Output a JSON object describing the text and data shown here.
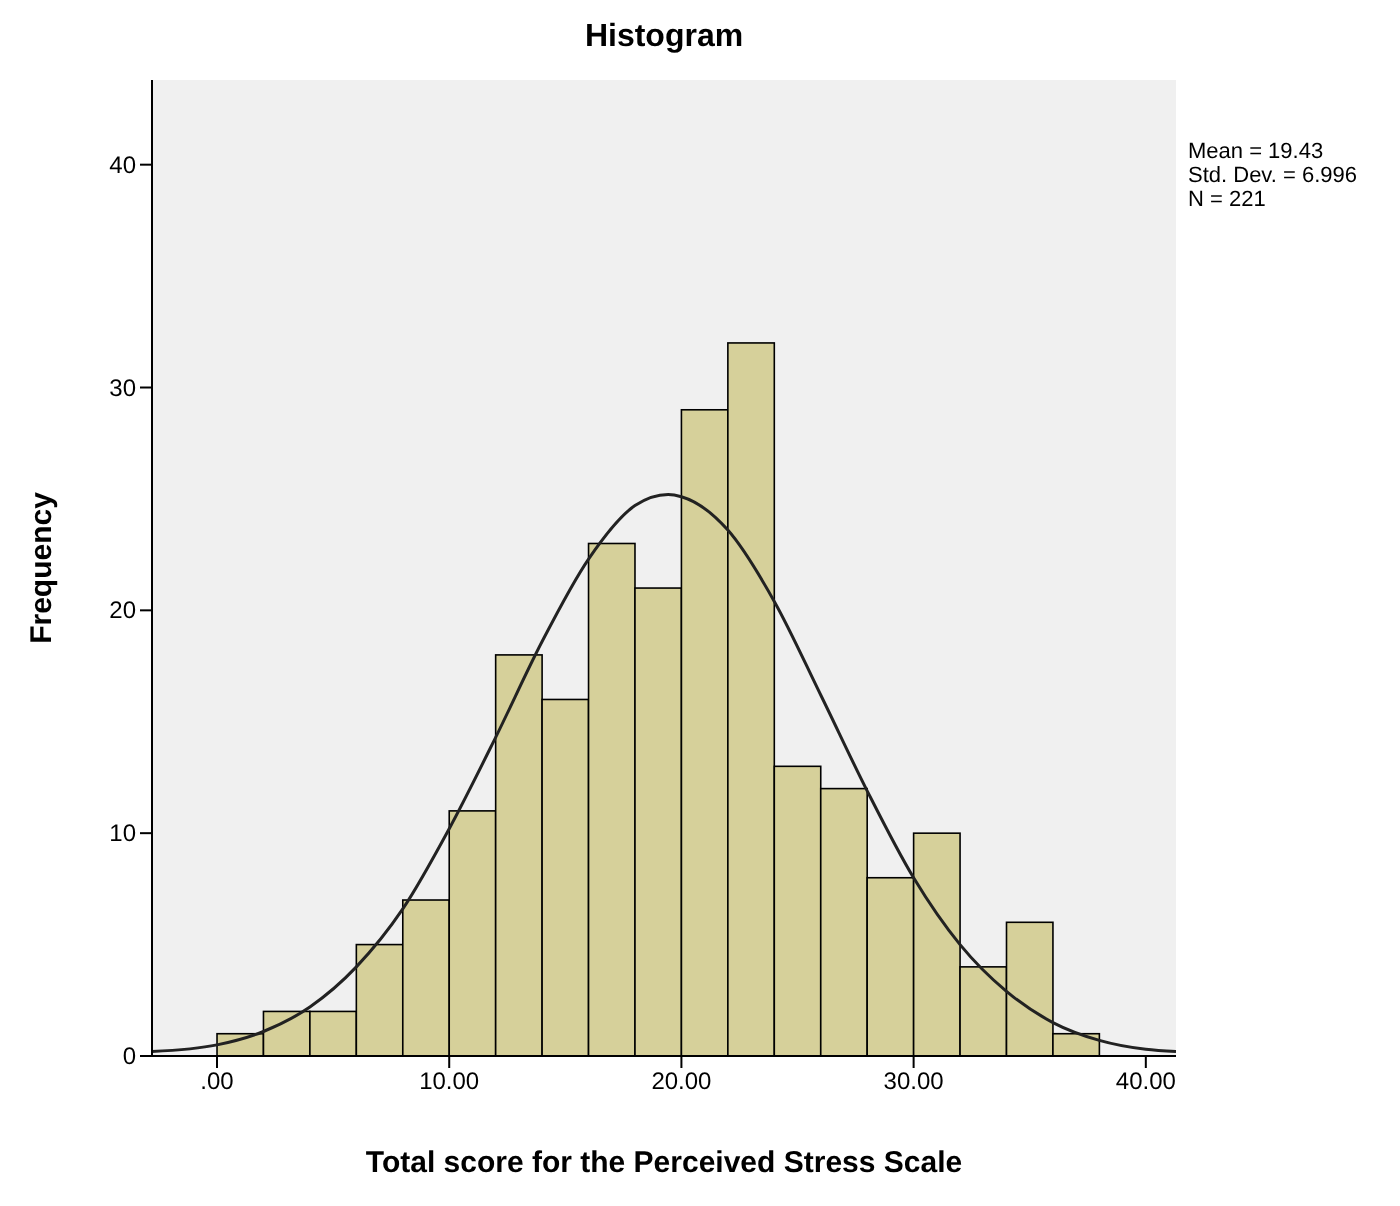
{
  "chart_data": {
    "type": "histogram",
    "title": "Histogram",
    "xlabel": "Total score for the Perceived Stress Scale",
    "ylabel": "Frequency",
    "bins": [
      0,
      2,
      4,
      6,
      8,
      10,
      12,
      14,
      16,
      18,
      20,
      22,
      24,
      26,
      28,
      30,
      32,
      34,
      36,
      38
    ],
    "values": [
      1,
      2,
      2,
      5,
      7,
      11,
      18,
      16,
      23,
      21,
      29,
      32,
      13,
      12,
      8,
      10,
      4,
      6,
      1
    ],
    "color": "#d6d09a",
    "series": [
      {
        "type": "line",
        "color": "#222222",
        "x": [
          -2.8,
          0,
          2,
          4,
          6,
          8,
          10,
          12,
          14,
          16,
          18,
          19.43,
          20,
          22,
          24,
          26,
          28,
          30,
          32,
          34,
          36,
          38,
          40,
          41.3
        ],
        "values": [
          0.2,
          0.5,
          1.1,
          2.2,
          4.0,
          6.6,
          10.2,
          14.3,
          18.6,
          22.3,
          24.7,
          25.2,
          25.1,
          23.6,
          20.4,
          16.2,
          11.9,
          8.0,
          5.0,
          2.9,
          1.5,
          0.7,
          0.3,
          0.2
        ]
      }
    ],
    "xlim": [
      -2.8,
      41.3
    ],
    "ylim": [
      0,
      43.8
    ],
    "xticks": [
      {
        "value": 0,
        "label": ".00"
      },
      {
        "value": 10,
        "label": "10.00"
      },
      {
        "value": 20,
        "label": "20.00"
      },
      {
        "value": 30,
        "label": "30.00"
      },
      {
        "value": 40,
        "label": "40.00"
      }
    ],
    "yticks": [
      0,
      10,
      20,
      30,
      40
    ],
    "annotations": [
      "Mean = 19.43",
      "Std. Dev. = 6.996",
      "N = 221"
    ]
  }
}
